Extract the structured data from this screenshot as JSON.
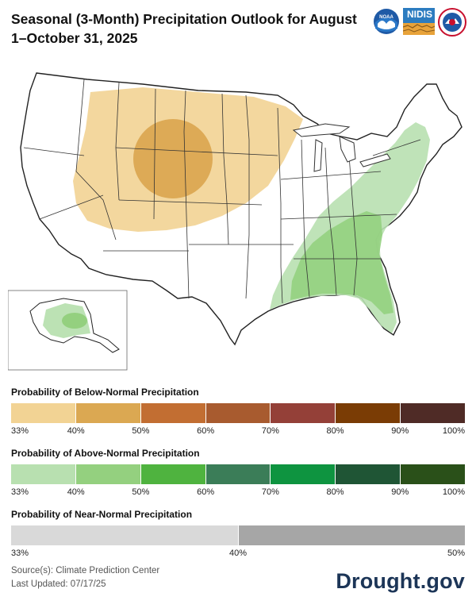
{
  "title": "Seasonal (3-Month) Precipitation Outlook for August 1–October 31, 2025",
  "logos": {
    "noaa": {
      "icon": "noaa-logo-icon",
      "text": "NOAA"
    },
    "nidis": {
      "icon": "nidis-logo-icon",
      "text": "NIDIS"
    },
    "nws": {
      "icon": "nws-logo-icon",
      "text": "NATIONAL WEATHER SERVICE"
    }
  },
  "map": {
    "region": "Contiguous United States with Alaska inset",
    "below_normal_region": "North-central and western U.S. (Montana to Colorado)",
    "above_normal_region": "Eastern and southeastern U.S. plus southern Alaska"
  },
  "legends": {
    "below": {
      "title": "Probability of Below-Normal Precipitation",
      "colors": [
        "#f2d394",
        "#dba852",
        "#c26e32",
        "#a85b2f",
        "#944038",
        "#7a3c05",
        "#4f2b26"
      ],
      "labels": [
        "33%",
        "40%",
        "50%",
        "60%",
        "70%",
        "80%",
        "90%",
        "100%"
      ]
    },
    "above": {
      "title": "Probability of Above-Normal Precipitation",
      "colors": [
        "#b8e0b0",
        "#94d07f",
        "#4fb33f",
        "#3b7d58",
        "#0e9440",
        "#1f5535",
        "#2a5019"
      ],
      "labels": [
        "33%",
        "40%",
        "50%",
        "60%",
        "70%",
        "80%",
        "90%",
        "100%"
      ]
    },
    "near": {
      "title": "Probability of Near-Normal Precipitation",
      "colors": [
        "#d9d9d9",
        "#a6a6a6"
      ],
      "labels": [
        "33%",
        "40%",
        "50%"
      ]
    }
  },
  "footer": {
    "source": "Source(s): Climate Prediction Center",
    "updated": "Last Updated: 07/17/25"
  },
  "brand": "Drought.gov"
}
